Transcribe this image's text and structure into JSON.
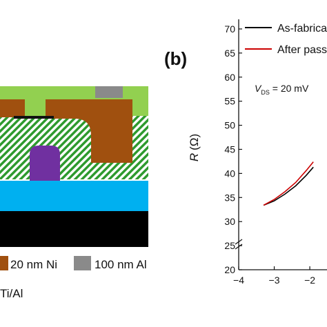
{
  "panel_a": {
    "legend": [
      {
        "label": "20 nm Ni",
        "color": "#a0500f"
      },
      {
        "label": "100 nm Al",
        "color": "#8a8a8a"
      }
    ],
    "footnote": "Ti/Al",
    "colors": {
      "outer": "#92d050",
      "ni": "#a0500f",
      "al": "#8a8a8a",
      "hatch": "#2e9a2e",
      "gate": "#7030a0",
      "channel": "#00b0f0",
      "substrate": "#000000",
      "contact": "#111111"
    }
  },
  "panel_b": {
    "panel_label": "(b)",
    "annotation": {
      "main": "V",
      "sub": "DS",
      "rest": " = 20 mV"
    },
    "ylabel": {
      "main": "R",
      "unit": "(Ω)"
    }
  },
  "chart_data": {
    "type": "line",
    "xlabel": "",
    "ylabel": "R (Ω)",
    "xlim": [
      -4,
      -1.4
    ],
    "ylim": [
      20,
      72
    ],
    "xticks": [
      -4,
      -3,
      -2
    ],
    "yticks": [
      20,
      25,
      30,
      35,
      40,
      45,
      50,
      55,
      60,
      65,
      70
    ],
    "legend_position": "top-right",
    "series": [
      {
        "name": "As-fabricat",
        "color": "#000000",
        "points": [
          [
            -3.3,
            33.4
          ],
          [
            -3.0,
            34.3
          ],
          [
            -2.7,
            35.7
          ],
          [
            -2.4,
            37.4
          ],
          [
            -2.1,
            39.6
          ],
          [
            -1.9,
            41.3
          ]
        ]
      },
      {
        "name": "After passi",
        "color": "#cc0000",
        "points": [
          [
            -3.3,
            33.4
          ],
          [
            -3.0,
            34.6
          ],
          [
            -2.7,
            36.2
          ],
          [
            -2.4,
            38.1
          ],
          [
            -2.1,
            40.6
          ],
          [
            -1.9,
            42.4
          ]
        ]
      }
    ]
  }
}
